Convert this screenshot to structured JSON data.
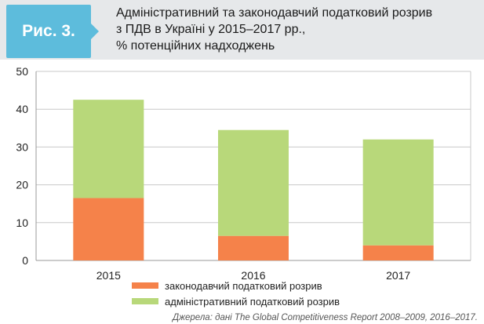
{
  "figure": {
    "badge": "Рис. 3.",
    "title_lines": [
      "Адміністративний та законодавчий податковий розрив",
      "з ПДВ в Україні у 2015–2017 рр.,",
      "% потенційних надходжень"
    ],
    "source": "Джерела: дані The Global Competitiveness Report 2008–2009, 2016–2017."
  },
  "colors": {
    "legislative": "#f5824a",
    "administrative": "#b8d87a",
    "header_bg": "#e6e8ea",
    "badge_bg": "#5dbcdc"
  },
  "chart_data": {
    "type": "bar",
    "stacked": true,
    "categories": [
      "2015",
      "2016",
      "2017"
    ],
    "series": [
      {
        "name": "законодавчий податковий розрив",
        "values": [
          16.5,
          6.5,
          4.0
        ]
      },
      {
        "name": "адміністративний податковий розрив",
        "values": [
          26.0,
          28.0,
          28.0
        ]
      }
    ],
    "ylim": [
      0,
      50
    ],
    "yticks": [
      0,
      10,
      20,
      30,
      40,
      50
    ],
    "grid": true,
    "legend_position": "bottom"
  }
}
